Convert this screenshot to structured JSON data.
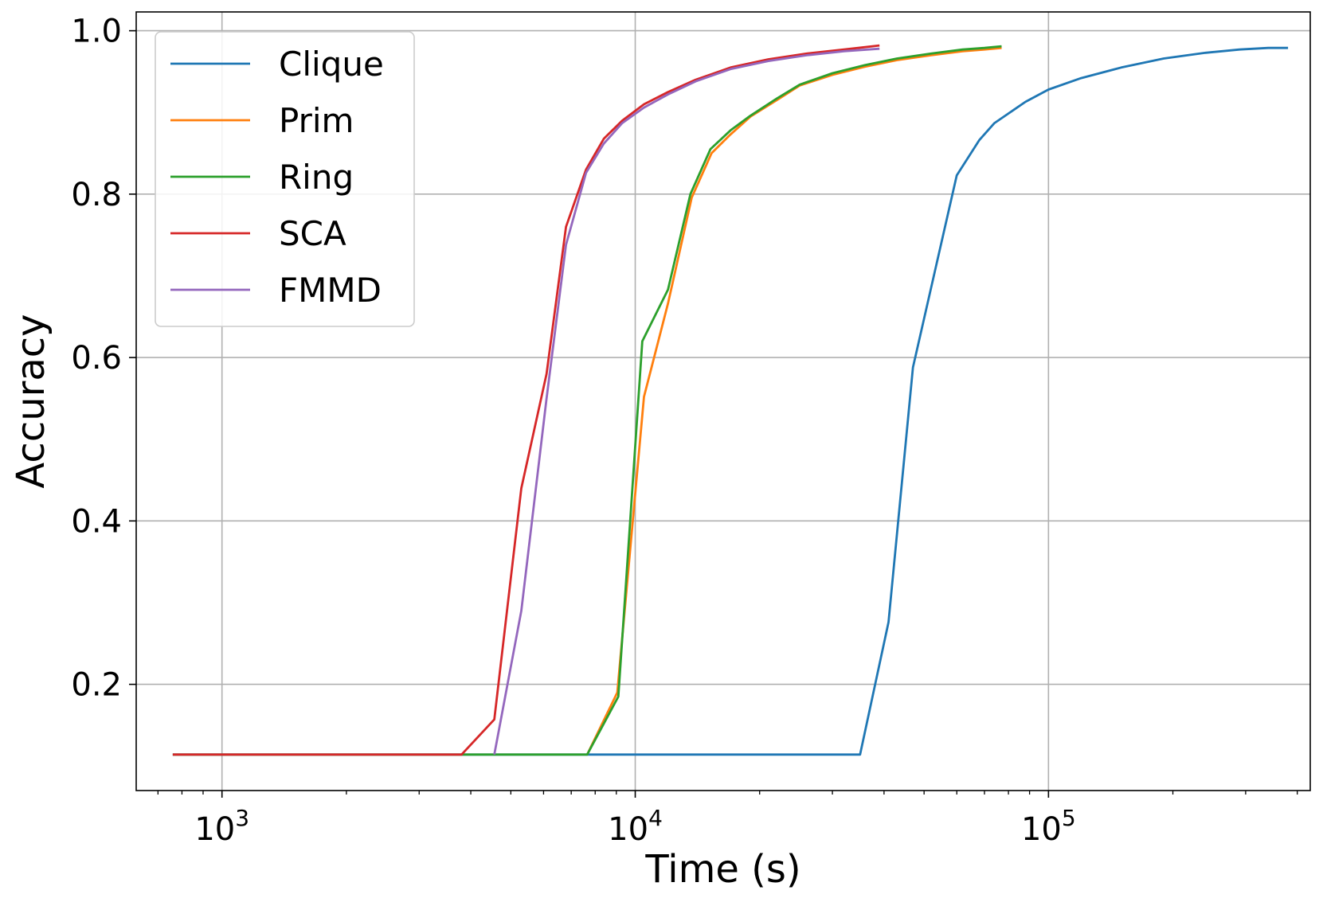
{
  "chart_data": {
    "type": "line",
    "title": "",
    "xlabel": "Time (s)",
    "ylabel": "Accuracy",
    "xscale": "log",
    "xlim": [
      620,
      430000
    ],
    "ylim": [
      0.07,
      1.023
    ],
    "grid": true,
    "legend_position": "top-left",
    "x_ticks": [
      {
        "value": 1000,
        "base": "10",
        "exp": "3"
      },
      {
        "value": 10000,
        "base": "10",
        "exp": "4"
      },
      {
        "value": 100000,
        "base": "10",
        "exp": "5"
      }
    ],
    "y_ticks": [
      {
        "value": 0.2,
        "label": "0.2"
      },
      {
        "value": 0.4,
        "label": "0.4"
      },
      {
        "value": 0.6,
        "label": "0.6"
      },
      {
        "value": 0.8,
        "label": "0.8"
      },
      {
        "value": 1.0,
        "label": "1.0"
      }
    ],
    "series": [
      {
        "name": "Clique",
        "color": "#1f77b4",
        "points": [
          [
            760,
            0.114
          ],
          [
            35000,
            0.114
          ],
          [
            41000,
            0.276
          ],
          [
            47000,
            0.588
          ],
          [
            60000,
            0.823
          ],
          [
            68000,
            0.866
          ],
          [
            74000,
            0.887
          ],
          [
            88000,
            0.913
          ],
          [
            100000,
            0.928
          ],
          [
            120000,
            0.942
          ],
          [
            150000,
            0.955
          ],
          [
            190000,
            0.966
          ],
          [
            240000,
            0.973
          ],
          [
            290000,
            0.977
          ],
          [
            340000,
            0.979
          ],
          [
            380000,
            0.979
          ]
        ]
      },
      {
        "name": "Prim",
        "color": "#ff7f0e",
        "points": [
          [
            7650,
            0.114
          ],
          [
            9050,
            0.19
          ],
          [
            10500,
            0.552
          ],
          [
            12000,
            0.666
          ],
          [
            13700,
            0.796
          ],
          [
            15300,
            0.85
          ],
          [
            17000,
            0.873
          ],
          [
            19000,
            0.895
          ],
          [
            22000,
            0.915
          ],
          [
            25000,
            0.933
          ],
          [
            30000,
            0.946
          ],
          [
            36000,
            0.956
          ],
          [
            43000,
            0.964
          ],
          [
            52000,
            0.97
          ],
          [
            62000,
            0.975
          ],
          [
            70000,
            0.977
          ],
          [
            77000,
            0.979
          ]
        ]
      },
      {
        "name": "Ring",
        "color": "#2ca02c",
        "points": [
          [
            760,
            0.114
          ],
          [
            7650,
            0.114
          ],
          [
            9100,
            0.185
          ],
          [
            10400,
            0.62
          ],
          [
            12000,
            0.683
          ],
          [
            13600,
            0.8
          ],
          [
            15200,
            0.855
          ],
          [
            17000,
            0.878
          ],
          [
            19000,
            0.896
          ],
          [
            22000,
            0.917
          ],
          [
            25000,
            0.934
          ],
          [
            30000,
            0.948
          ],
          [
            36000,
            0.958
          ],
          [
            43000,
            0.966
          ],
          [
            52000,
            0.972
          ],
          [
            62000,
            0.977
          ],
          [
            70000,
            0.979
          ],
          [
            77000,
            0.981
          ]
        ]
      },
      {
        "name": "SCA",
        "color": "#d62728",
        "points": [
          [
            760,
            0.114
          ],
          [
            3800,
            0.114
          ],
          [
            4560,
            0.157
          ],
          [
            5300,
            0.44
          ],
          [
            6100,
            0.58
          ],
          [
            6800,
            0.76
          ],
          [
            7600,
            0.83
          ],
          [
            8400,
            0.868
          ],
          [
            9300,
            0.89
          ],
          [
            10500,
            0.91
          ],
          [
            12000,
            0.925
          ],
          [
            14000,
            0.94
          ],
          [
            17000,
            0.955
          ],
          [
            21000,
            0.965
          ],
          [
            26000,
            0.972
          ],
          [
            32000,
            0.977
          ],
          [
            39000,
            0.982
          ]
        ]
      },
      {
        "name": "FMMD",
        "color": "#9467bd",
        "points": [
          [
            4560,
            0.114
          ],
          [
            5300,
            0.29
          ],
          [
            6100,
            0.55
          ],
          [
            6800,
            0.738
          ],
          [
            7600,
            0.826
          ],
          [
            8400,
            0.862
          ],
          [
            9300,
            0.887
          ],
          [
            10500,
            0.906
          ],
          [
            12000,
            0.922
          ],
          [
            14000,
            0.938
          ],
          [
            17000,
            0.953
          ],
          [
            21000,
            0.963
          ],
          [
            26000,
            0.97
          ],
          [
            32000,
            0.975
          ],
          [
            39000,
            0.978
          ]
        ]
      }
    ]
  }
}
